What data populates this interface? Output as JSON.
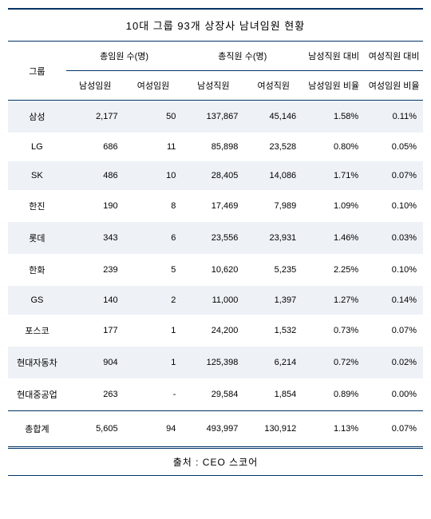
{
  "title": "10대 그룹 93개 상장사 남녀임원 현황",
  "headers": {
    "group": "그룹",
    "exec_total": "총임원 수(명)",
    "emp_total": "총직원 수(명)",
    "male_ratio_label1": "남성직원 대비",
    "male_ratio_label2": "남성임원 비율",
    "female_ratio_label1": "여성직원 대비",
    "female_ratio_label2": "여성임원 비율",
    "male_exec": "남성임원",
    "female_exec": "여성임원",
    "male_emp": "남성직원",
    "female_emp": "여성직원"
  },
  "rows": [
    {
      "group": "삼성",
      "m_exec": "2,177",
      "f_exec": "50",
      "m_emp": "137,867",
      "f_emp": "45,146",
      "m_ratio": "1.58%",
      "f_ratio": "0.11%"
    },
    {
      "group": "LG",
      "m_exec": "686",
      "f_exec": "11",
      "m_emp": "85,898",
      "f_emp": "23,528",
      "m_ratio": "0.80%",
      "f_ratio": "0.05%"
    },
    {
      "group": "SK",
      "m_exec": "486",
      "f_exec": "10",
      "m_emp": "28,405",
      "f_emp": "14,086",
      "m_ratio": "1.71%",
      "f_ratio": "0.07%"
    },
    {
      "group": "한진",
      "m_exec": "190",
      "f_exec": "8",
      "m_emp": "17,469",
      "f_emp": "7,989",
      "m_ratio": "1.09%",
      "f_ratio": "0.10%"
    },
    {
      "group": "롯데",
      "m_exec": "343",
      "f_exec": "6",
      "m_emp": "23,556",
      "f_emp": "23,931",
      "m_ratio": "1.46%",
      "f_ratio": "0.03%"
    },
    {
      "group": "한화",
      "m_exec": "239",
      "f_exec": "5",
      "m_emp": "10,620",
      "f_emp": "5,235",
      "m_ratio": "2.25%",
      "f_ratio": "0.10%"
    },
    {
      "group": "GS",
      "m_exec": "140",
      "f_exec": "2",
      "m_emp": "11,000",
      "f_emp": "1,397",
      "m_ratio": "1.27%",
      "f_ratio": "0.14%"
    },
    {
      "group": "포스코",
      "m_exec": "177",
      "f_exec": "1",
      "m_emp": "24,200",
      "f_emp": "1,532",
      "m_ratio": "0.73%",
      "f_ratio": "0.07%"
    },
    {
      "group": "현대자동차",
      "m_exec": "904",
      "f_exec": "1",
      "m_emp": "125,398",
      "f_emp": "6,214",
      "m_ratio": "0.72%",
      "f_ratio": "0.02%"
    },
    {
      "group": "현대중공업",
      "m_exec": "263",
      "f_exec": "-",
      "m_emp": "29,584",
      "f_emp": "1,854",
      "m_ratio": "0.89%",
      "f_ratio": "0.00%"
    }
  ],
  "total": {
    "label": "총합계",
    "m_exec": "5,605",
    "f_exec": "94",
    "m_emp": "493,997",
    "f_emp": "130,912",
    "m_ratio": "1.13%",
    "f_ratio": "0.07%"
  },
  "source": "출처 : CEO 스코어",
  "colors": {
    "border": "#003366",
    "odd_bg": "#eef2f7"
  }
}
